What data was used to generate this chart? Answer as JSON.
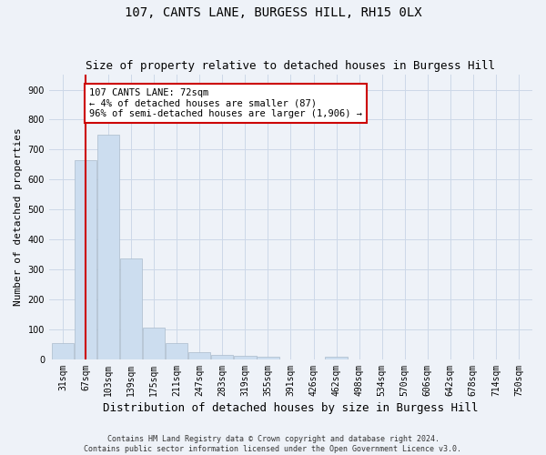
{
  "title": "107, CANTS LANE, BURGESS HILL, RH15 0LX",
  "subtitle": "Size of property relative to detached houses in Burgess Hill",
  "xlabel": "Distribution of detached houses by size in Burgess Hill",
  "ylabel": "Number of detached properties",
  "bar_labels": [
    "31sqm",
    "67sqm",
    "103sqm",
    "139sqm",
    "175sqm",
    "211sqm",
    "247sqm",
    "283sqm",
    "319sqm",
    "355sqm",
    "391sqm",
    "426sqm",
    "462sqm",
    "498sqm",
    "534sqm",
    "570sqm",
    "606sqm",
    "642sqm",
    "678sqm",
    "714sqm",
    "750sqm"
  ],
  "bar_values": [
    55,
    665,
    750,
    338,
    107,
    53,
    25,
    14,
    12,
    9,
    0,
    0,
    10,
    0,
    0,
    0,
    0,
    0,
    0,
    0,
    0
  ],
  "bar_color": "#ccddef",
  "bar_edge_color": "#aabbcc",
  "ylim": [
    0,
    950
  ],
  "yticks": [
    0,
    100,
    200,
    300,
    400,
    500,
    600,
    700,
    800,
    900
  ],
  "property_line_x": 1,
  "bin_width": 1,
  "annotation_text": "107 CANTS LANE: 72sqm\n← 4% of detached houses are smaller (87)\n96% of semi-detached houses are larger (1,906) →",
  "annotation_box_color": "#ffffff",
  "annotation_box_edge": "#cc0000",
  "red_line_color": "#cc0000",
  "grid_color": "#ccd8e8",
  "bg_color": "#eef2f8",
  "title_fontsize": 10,
  "subtitle_fontsize": 9,
  "xlabel_fontsize": 9,
  "ylabel_fontsize": 8,
  "tick_fontsize": 7,
  "annot_fontsize": 7.5,
  "footer_fontsize": 6,
  "footer_text": "Contains HM Land Registry data © Crown copyright and database right 2024.\nContains public sector information licensed under the Open Government Licence v3.0."
}
